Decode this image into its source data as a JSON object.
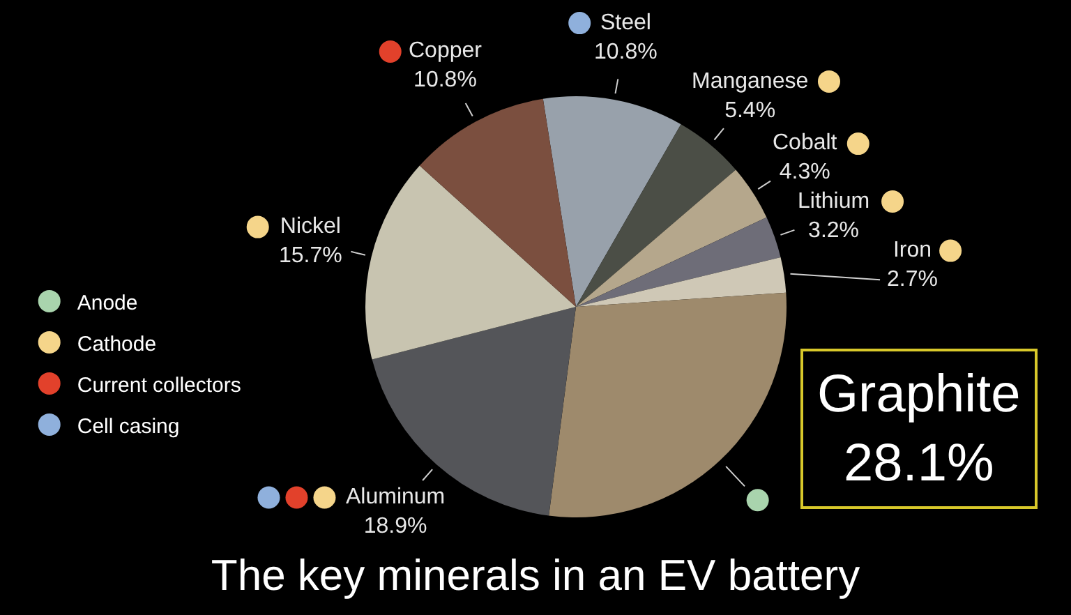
{
  "chart_data": [
    {
      "type": "pie",
      "title": "The key minerals in an EV battery",
      "categories": [
        "Steel",
        "Manganese",
        "Cobalt",
        "Lithium",
        "Iron",
        "Graphite",
        "Aluminum",
        "Nickel",
        "Copper"
      ],
      "values": [
        10.8,
        5.4,
        4.3,
        3.2,
        2.7,
        28.1,
        18.9,
        15.7,
        10.8
      ],
      "colors": [
        "#98a1ab",
        "#4b4e46",
        "#b5a78c",
        "#6e6d78",
        "#cfc8b6",
        "#9e8a6c",
        "#545559",
        "#c8c4b0",
        "#7b4f3f"
      ],
      "value_labels": [
        "10.8%",
        "5.4%",
        "4.3%",
        "3.2%",
        "2.7%",
        "28.1%",
        "18.9%",
        "15.7%",
        "10.8%"
      ]
    },
    {
      "type": "other",
      "categories": [
        "Anode",
        "Cathode",
        "Current collectors",
        "Cell casing"
      ],
      "colors": [
        "#a9d4ad",
        "#f5d58a",
        "#e2412b",
        "#8fb0dc"
      ]
    }
  ]
}
